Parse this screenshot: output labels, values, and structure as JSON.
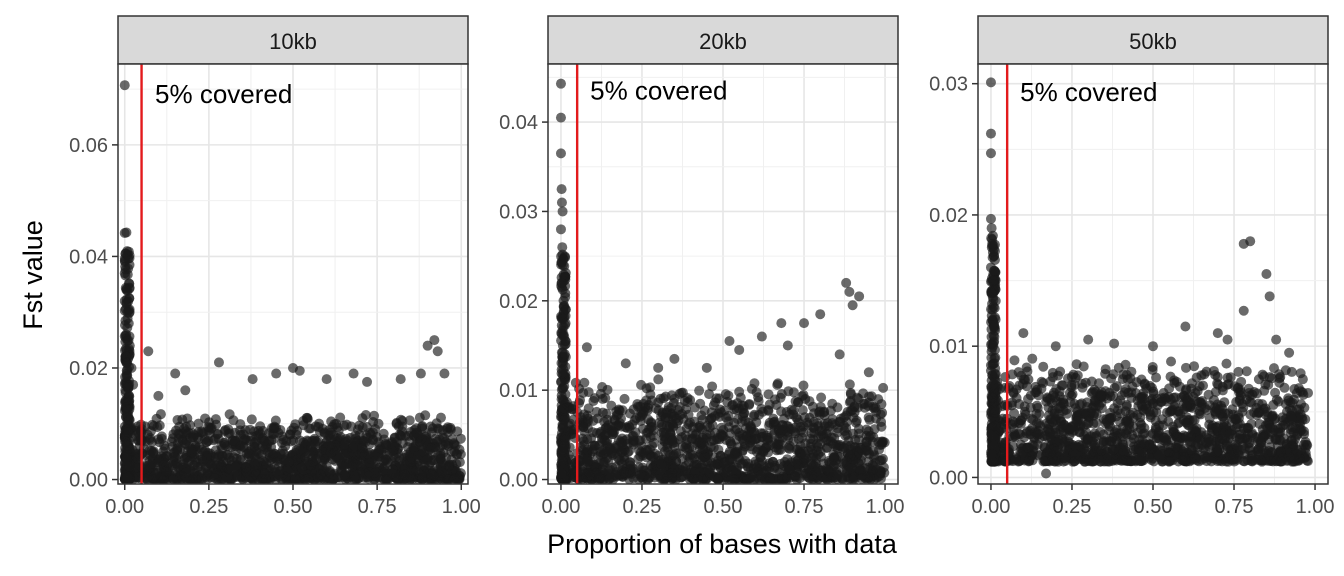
{
  "chart_data": {
    "type": "scatter",
    "xlabel": "Proportion of bases with data",
    "ylabel": "Fst value",
    "grid": true,
    "point_color": "#1a1a1a",
    "vline_color": "#e31a1c",
    "panels": [
      {
        "facet": "10kb",
        "xlim": [
          -0.02,
          1.02
        ],
        "ylim": [
          -0.0008,
          0.0745
        ],
        "x_ticks": [
          0.0,
          0.25,
          0.5,
          0.75,
          1.0
        ],
        "x_tick_labels": [
          "0.00",
          "0.25",
          "0.50",
          "0.75",
          "1.00"
        ],
        "y_ticks": [
          0.0,
          0.02,
          0.04,
          0.06
        ],
        "y_tick_labels": [
          "0.00",
          "0.02",
          "0.04",
          "0.06"
        ],
        "vline_x": 0.05,
        "annotation": {
          "text": "5% covered",
          "x": 0.09,
          "y": 0.0675
        },
        "points": [
          [
            0.0,
            0.0707
          ],
          [
            0.005,
            0.0443
          ],
          [
            0.0,
            0.0442
          ],
          [
            0.002,
            0.0405
          ],
          [
            0.01,
            0.0378
          ],
          [
            0.0,
            0.037
          ],
          [
            0.005,
            0.034
          ],
          [
            0.0,
            0.032
          ],
          [
            0.008,
            0.03
          ],
          [
            0.012,
            0.028
          ],
          [
            0.004,
            0.026
          ],
          [
            0.015,
            0.024
          ],
          [
            0.003,
            0.022
          ],
          [
            0.02,
            0.02
          ],
          [
            0.006,
            0.019
          ],
          [
            0.025,
            0.017
          ],
          [
            0.07,
            0.023
          ],
          [
            0.15,
            0.019
          ],
          [
            0.28,
            0.021
          ],
          [
            0.45,
            0.019
          ],
          [
            0.5,
            0.02
          ],
          [
            0.52,
            0.0195
          ],
          [
            0.6,
            0.018
          ],
          [
            0.68,
            0.019
          ],
          [
            0.72,
            0.0175
          ],
          [
            0.82,
            0.018
          ],
          [
            0.88,
            0.019
          ],
          [
            0.9,
            0.024
          ],
          [
            0.92,
            0.025
          ],
          [
            0.93,
            0.023
          ],
          [
            0.95,
            0.019
          ],
          [
            0.38,
            0.018
          ],
          [
            0.18,
            0.016
          ],
          [
            0.1,
            0.015
          ]
        ],
        "dense_band": {
          "x": [
            0.0,
            1.0
          ],
          "y_low": 0.0,
          "y_high": 0.012
        }
      },
      {
        "facet": "20kb",
        "xlim": [
          -0.04,
          1.04
        ],
        "ylim": [
          -0.0005,
          0.0465
        ],
        "x_ticks": [
          0.0,
          0.25,
          0.5,
          0.75,
          1.0
        ],
        "x_tick_labels": [
          "0.00",
          "0.25",
          "0.50",
          "0.75",
          "1.00"
        ],
        "y_ticks": [
          0.0,
          0.01,
          0.02,
          0.03,
          0.04
        ],
        "y_tick_labels": [
          "0.00",
          "0.01",
          "0.02",
          "0.03",
          "0.04"
        ],
        "vline_x": 0.05,
        "annotation": {
          "text": "5% covered",
          "x": 0.09,
          "y": 0.0425
        },
        "points": [
          [
            0.0,
            0.0443
          ],
          [
            0.0,
            0.0405
          ],
          [
            0.0,
            0.0365
          ],
          [
            0.002,
            0.0325
          ],
          [
            0.003,
            0.031
          ],
          [
            0.005,
            0.03
          ],
          [
            0.0,
            0.028
          ],
          [
            0.004,
            0.026
          ],
          [
            0.006,
            0.024
          ],
          [
            0.002,
            0.022
          ],
          [
            0.008,
            0.02
          ],
          [
            0.004,
            0.018
          ],
          [
            0.01,
            0.016
          ],
          [
            0.006,
            0.015
          ],
          [
            0.08,
            0.0148
          ],
          [
            0.2,
            0.013
          ],
          [
            0.35,
            0.0135
          ],
          [
            0.52,
            0.0155
          ],
          [
            0.55,
            0.0145
          ],
          [
            0.62,
            0.016
          ],
          [
            0.68,
            0.0175
          ],
          [
            0.75,
            0.0175
          ],
          [
            0.8,
            0.0185
          ],
          [
            0.88,
            0.022
          ],
          [
            0.89,
            0.021
          ],
          [
            0.9,
            0.0195
          ],
          [
            0.92,
            0.0205
          ],
          [
            0.86,
            0.014
          ],
          [
            0.95,
            0.012
          ],
          [
            0.7,
            0.015
          ],
          [
            0.45,
            0.0125
          ],
          [
            0.3,
            0.0125
          ]
        ],
        "dense_band": {
          "x": [
            0.0,
            1.0
          ],
          "y_low": 0.0,
          "y_high": 0.0115
        }
      },
      {
        "facet": "50kb",
        "xlim": [
          -0.04,
          1.04
        ],
        "ylim": [
          -0.0005,
          0.0315
        ],
        "x_ticks": [
          0.0,
          0.25,
          0.5,
          0.75,
          1.0
        ],
        "x_tick_labels": [
          "0.00",
          "0.25",
          "0.50",
          "0.75",
          "1.00"
        ],
        "y_ticks": [
          0.0,
          0.01,
          0.02,
          0.03
        ],
        "y_tick_labels": [
          "0.00",
          "0.01",
          "0.02",
          "0.03"
        ],
        "vline_x": 0.05,
        "annotation": {
          "text": "5% covered",
          "x": 0.09,
          "y": 0.0287
        },
        "points": [
          [
            0.0,
            0.0301
          ],
          [
            0.0,
            0.0262
          ],
          [
            0.0,
            0.0247
          ],
          [
            0.0,
            0.0197
          ],
          [
            0.002,
            0.019
          ],
          [
            0.004,
            0.0178
          ],
          [
            0.0,
            0.016
          ],
          [
            0.006,
            0.015
          ],
          [
            0.002,
            0.014
          ],
          [
            0.008,
            0.013
          ],
          [
            0.004,
            0.012
          ],
          [
            0.01,
            0.0115
          ],
          [
            0.78,
            0.0178
          ],
          [
            0.8,
            0.018
          ],
          [
            0.85,
            0.0155
          ],
          [
            0.86,
            0.0138
          ],
          [
            0.78,
            0.0127
          ],
          [
            0.1,
            0.011
          ],
          [
            0.2,
            0.01
          ],
          [
            0.3,
            0.0105
          ],
          [
            0.38,
            0.0102
          ],
          [
            0.5,
            0.01
          ],
          [
            0.6,
            0.0115
          ],
          [
            0.7,
            0.011
          ],
          [
            0.73,
            0.0105
          ],
          [
            0.88,
            0.0105
          ],
          [
            0.92,
            0.0095
          ],
          [
            0.17,
            0.0003
          ]
        ],
        "dense_band": {
          "x": [
            0.0,
            0.98
          ],
          "y_low": 0.0012,
          "y_high": 0.0092
        }
      }
    ]
  }
}
